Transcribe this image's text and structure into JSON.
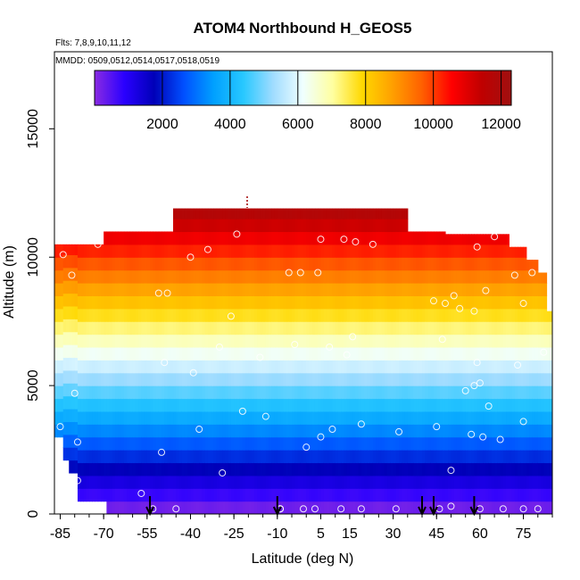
{
  "chart_data": {
    "type": "heatmap",
    "title": "ATOM4 Northbound H_GEOS5",
    "flights_label": "Flts: 7,8,9,10,11,12",
    "dates_label": "MMDD: 0509,0512,0514,0517,0518,0519",
    "xlabel": "Latitude (deg N)",
    "ylabel": "Altitude (m)",
    "xlim": [
      -87,
      85
    ],
    "ylim": [
      0,
      18000
    ],
    "x_ticks": [
      -85,
      -70,
      -55,
      -40,
      -25,
      -10,
      5,
      15,
      30,
      45,
      60,
      75
    ],
    "x_tick_labels": [
      "-85",
      "-70",
      "-55",
      "-40",
      "-25",
      "-10",
      "5",
      "15",
      "30",
      "45",
      "60",
      "75"
    ],
    "y_ticks": [
      0,
      5000,
      10000,
      15000
    ],
    "y_tick_labels": [
      "0",
      "5000",
      "10000",
      "15000"
    ],
    "colorbar": {
      "range": [
        0,
        12300
      ],
      "ticks": [
        2000,
        4000,
        6000,
        8000,
        10000,
        12000
      ],
      "tick_labels": [
        "2000",
        "4000",
        "6000",
        "8000",
        "10000",
        "12000"
      ],
      "colors": [
        "#8a2be2",
        "#2a00ff",
        "#0000b8",
        "#0050ff",
        "#00a0ff",
        "#28c8ff",
        "#a0dcff",
        "#f0ffff",
        "#ffffa0",
        "#ffd800",
        "#ffa000",
        "#ff6000",
        "#ff0000",
        "#c00000",
        "#a01010"
      ]
    },
    "layer_height": 500,
    "altitude_top_by_latitude": [
      {
        "lat_start": -87,
        "lat_end": -70,
        "top": 10500
      },
      {
        "lat_start": -70,
        "lat_end": -46,
        "top": 11000
      },
      {
        "lat_start": -46,
        "lat_end": 35,
        "top": 11900
      },
      {
        "lat_start": 35,
        "lat_end": 48,
        "top": 11000
      },
      {
        "lat_start": 48,
        "lat_end": 70,
        "top": 10900
      },
      {
        "lat_start": 70,
        "lat_end": 76,
        "top": 10400
      },
      {
        "lat_start": 76,
        "lat_end": 80,
        "top": 9900
      },
      {
        "lat_start": 80,
        "lat_end": 83,
        "top": 9400
      },
      {
        "lat_start": 83,
        "lat_end": 85,
        "top": 7900
      }
    ],
    "altitude_bottom_by_latitude": [
      {
        "lat_start": -87,
        "lat_end": -84,
        "top": 3000
      },
      {
        "lat_start": -84,
        "lat_end": -82,
        "top": 2100
      },
      {
        "lat_start": -82,
        "lat_end": -79,
        "top": 1600
      },
      {
        "lat_start": -79,
        "lat_end": -69,
        "top": 500
      },
      {
        "lat_start": -69,
        "lat_end": 85,
        "top": 0
      }
    ],
    "observations": [
      {
        "lat": -85,
        "alt": 3400
      },
      {
        "lat": -84,
        "alt": 10100
      },
      {
        "lat": -81,
        "alt": 9300
      },
      {
        "lat": -80,
        "alt": 4700
      },
      {
        "lat": -79,
        "alt": 2800
      },
      {
        "lat": -79,
        "alt": 1300
      },
      {
        "lat": -72,
        "alt": 10500
      },
      {
        "lat": -57,
        "alt": 800
      },
      {
        "lat": -51,
        "alt": 8600
      },
      {
        "lat": -50,
        "alt": 2400
      },
      {
        "lat": -49,
        "alt": 5900
      },
      {
        "lat": -48,
        "alt": 8600
      },
      {
        "lat": -45,
        "alt": 200
      },
      {
        "lat": -40,
        "alt": 10000
      },
      {
        "lat": -39,
        "alt": 5500
      },
      {
        "lat": -37,
        "alt": 3300
      },
      {
        "lat": -34,
        "alt": 10300
      },
      {
        "lat": -30,
        "alt": 6500
      },
      {
        "lat": -29,
        "alt": 1600
      },
      {
        "lat": -26,
        "alt": 7700
      },
      {
        "lat": -24,
        "alt": 10900
      },
      {
        "lat": -22,
        "alt": 4000
      },
      {
        "lat": -16,
        "alt": 6100
      },
      {
        "lat": -14,
        "alt": 3800
      },
      {
        "lat": -9,
        "alt": 200
      },
      {
        "lat": -6,
        "alt": 9400
      },
      {
        "lat": -4,
        "alt": 6600
      },
      {
        "lat": -2,
        "alt": 9400
      },
      {
        "lat": 0,
        "alt": 2600
      },
      {
        "lat": 4,
        "alt": 9400
      },
      {
        "lat": 5,
        "alt": 10700
      },
      {
        "lat": 5,
        "alt": 3000
      },
      {
        "lat": 8,
        "alt": 6500
      },
      {
        "lat": 9,
        "alt": 3300
      },
      {
        "lat": 13,
        "alt": 10700
      },
      {
        "lat": 14,
        "alt": 6200
      },
      {
        "lat": 16,
        "alt": 6900
      },
      {
        "lat": 17,
        "alt": 10600
      },
      {
        "lat": 19,
        "alt": 3500
      },
      {
        "lat": 23,
        "alt": 10500
      },
      {
        "lat": 32,
        "alt": 3200
      },
      {
        "lat": 44,
        "alt": 8300
      },
      {
        "lat": 45,
        "alt": 3400
      },
      {
        "lat": 46,
        "alt": 11600
      },
      {
        "lat": 47,
        "alt": 6800
      },
      {
        "lat": 48,
        "alt": 8200
      },
      {
        "lat": 50,
        "alt": 1700
      },
      {
        "lat": 51,
        "alt": 8500
      },
      {
        "lat": 52,
        "alt": 11200
      },
      {
        "lat": 53,
        "alt": 8000
      },
      {
        "lat": 55,
        "alt": 4800
      },
      {
        "lat": 57,
        "alt": 3100
      },
      {
        "lat": 58,
        "alt": 7900
      },
      {
        "lat": 58,
        "alt": 5000
      },
      {
        "lat": 59,
        "alt": 10400
      },
      {
        "lat": 59,
        "alt": 5900
      },
      {
        "lat": 60,
        "alt": 5100
      },
      {
        "lat": 61,
        "alt": 3000
      },
      {
        "lat": 62,
        "alt": 8700
      },
      {
        "lat": 63,
        "alt": 4200
      },
      {
        "lat": 65,
        "alt": 10800
      },
      {
        "lat": 67,
        "alt": 2900
      },
      {
        "lat": 72,
        "alt": 9300
      },
      {
        "lat": 73,
        "alt": 5800
      },
      {
        "lat": 75,
        "alt": 3600
      },
      {
        "lat": 75,
        "alt": 8200
      },
      {
        "lat": 73,
        "alt": 10800
      },
      {
        "lat": 78,
        "alt": 9400
      },
      {
        "lat": 82,
        "alt": 6300
      },
      {
        "lat": -9,
        "alt": 200
      },
      {
        "lat": -1,
        "alt": 200
      },
      {
        "lat": 3,
        "alt": 200
      },
      {
        "lat": 12,
        "alt": 200
      },
      {
        "lat": 19,
        "alt": 200
      },
      {
        "lat": 31,
        "alt": 200
      },
      {
        "lat": 46,
        "alt": 200
      },
      {
        "lat": 50,
        "alt": 300
      },
      {
        "lat": 60,
        "alt": 200
      },
      {
        "lat": 68,
        "alt": 200
      },
      {
        "lat": 75,
        "alt": 200
      },
      {
        "lat": 80,
        "alt": 200
      },
      {
        "lat": -53,
        "alt": 200
      }
    ],
    "arrow_latitudes": [
      -54,
      -10,
      40,
      44,
      58
    ]
  }
}
